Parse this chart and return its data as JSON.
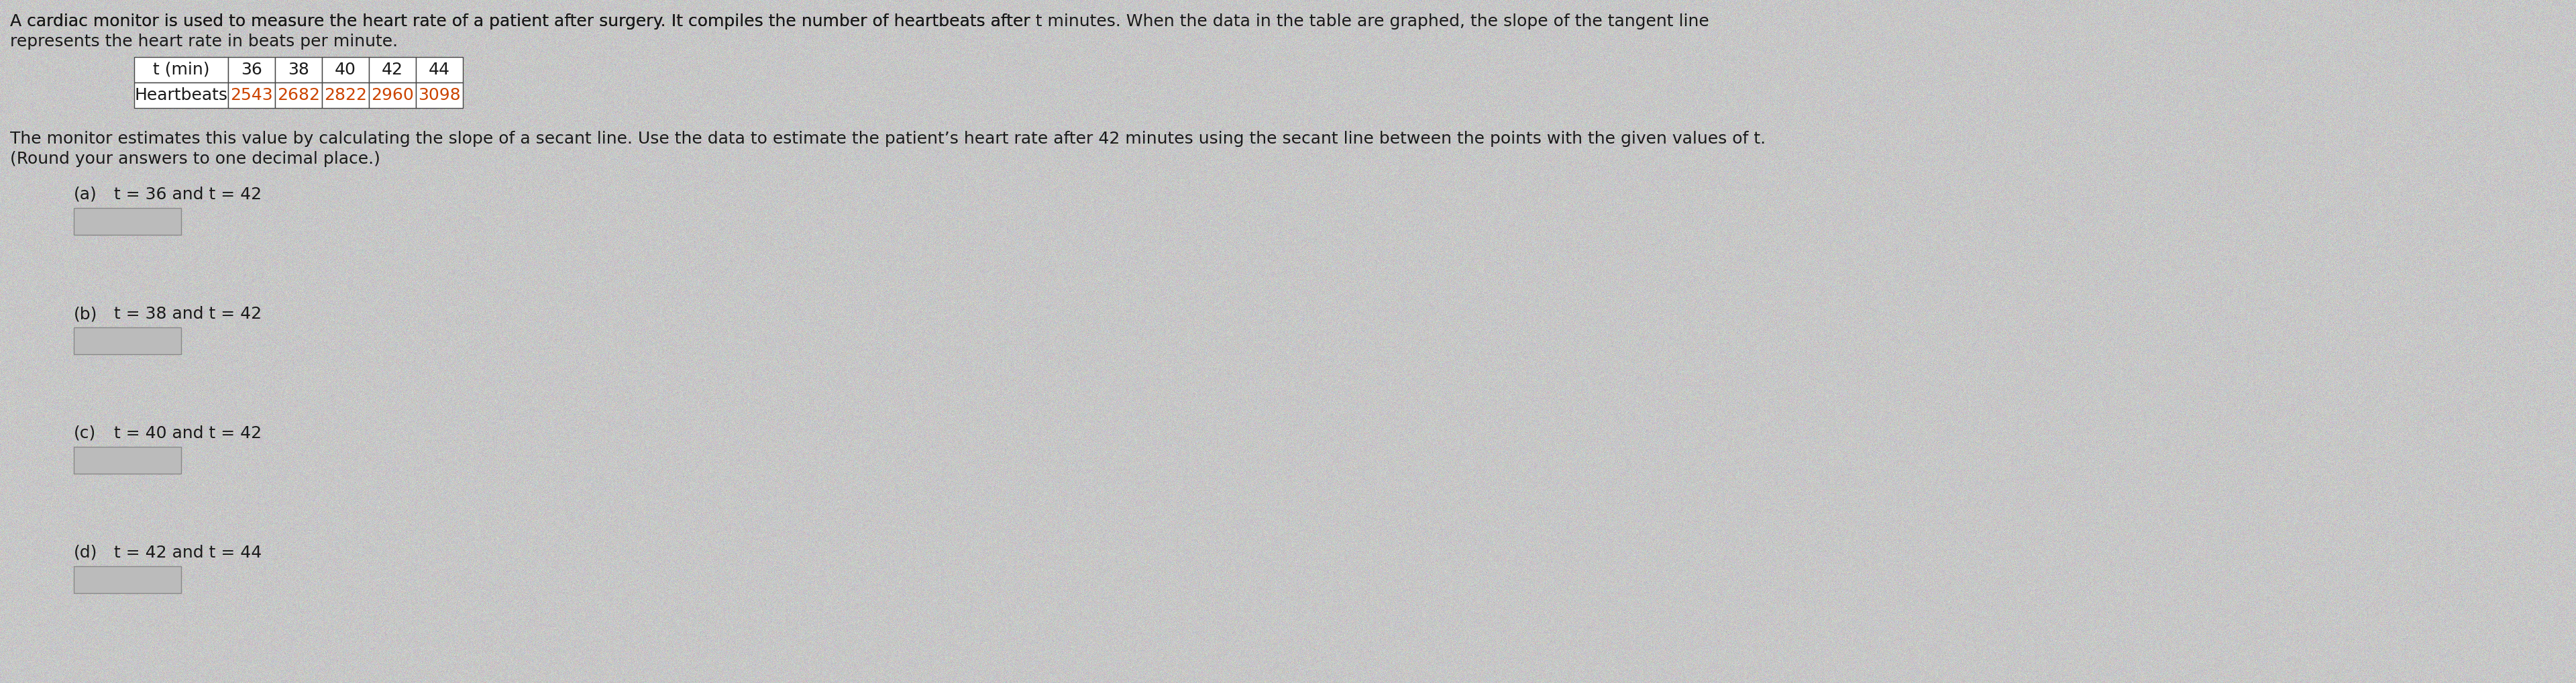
{
  "bg_color": "#c8c8c8",
  "text_color": "#1a1a1a",
  "orange_color": "#cc4400",
  "font_family": "DejaVu Sans",
  "intro_line1": "A cardiac monitor is used to measure the heart rate of a patient after surgery. It compiles the number of heartbeats after ",
  "intro_line1_italic": "t",
  "intro_line1_rest": " minutes. When the data in the table are graphed, the slope of the tangent line",
  "intro_line2": "represents the heart rate in beats per minute.",
  "table_headers": [
    "t (min)",
    "36",
    "38",
    "40",
    "42",
    "44"
  ],
  "table_row2_label": "Heartbeats",
  "table_row2_values": [
    "2543",
    "2682",
    "2822",
    "2960",
    "3098"
  ],
  "body_line1": "The monitor estimates this value by calculating the slope of a secant line. Use the data to estimate the patient’s heart rate after 42 minutes using the secant line between the points with the given values of ",
  "body_line1_italic": "t",
  "body_line1_end": ".",
  "body_line2": "(Round your answers to one decimal place.)",
  "parts": [
    {
      "label": "(a)",
      "text_before": "t",
      "text_after": " = 36 and ",
      "t2": "t",
      "t2_after": " = 42"
    },
    {
      "label": "(b)",
      "text_before": "t",
      "text_after": " = 38 and ",
      "t2": "t",
      "t2_after": " = 42"
    },
    {
      "label": "(c)",
      "text_before": "t",
      "text_after": " = 40 and ",
      "t2": "t",
      "t2_after": " = 42"
    },
    {
      "label": "(d)",
      "text_before": "t",
      "text_after": " = 42 and ",
      "t2": "t",
      "t2_after": " = 44"
    }
  ],
  "intro_fontsize": 18,
  "table_fontsize": 18,
  "body_fontsize": 18,
  "part_fontsize": 18
}
